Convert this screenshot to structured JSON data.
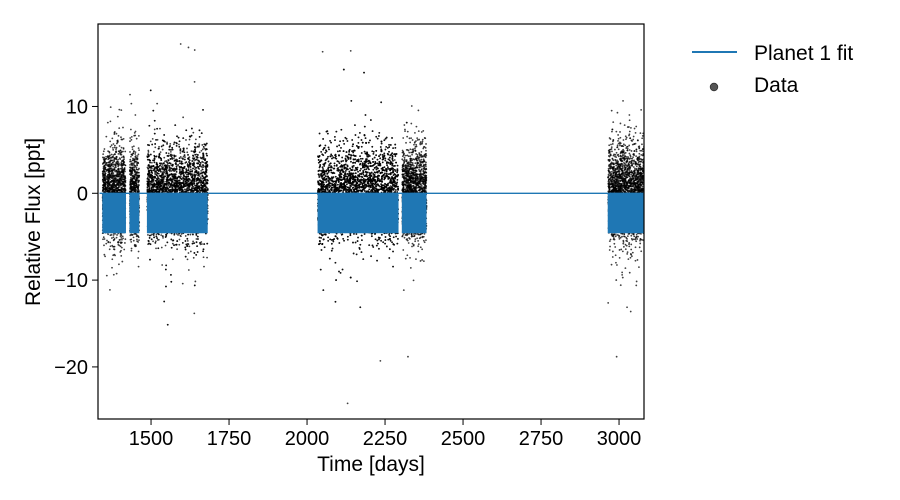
{
  "chart_data": {
    "type": "scatter",
    "xlabel": "Time [days]",
    "ylabel": "Relative Flux [ppt]",
    "xlim": [
      1330,
      3080
    ],
    "ylim": [
      -26,
      19.5
    ],
    "xticks": [
      1500,
      1750,
      2000,
      2250,
      2500,
      2750,
      3000
    ],
    "xtick_labels": [
      "1500",
      "1750",
      "2000",
      "2250",
      "2500",
      "2750",
      "3000"
    ],
    "yticks": [
      10,
      0,
      -10,
      -20
    ],
    "ytick_labels": [
      "10",
      "0",
      "−10",
      "−20"
    ],
    "grid": false,
    "legend_placement": "outside-right-top",
    "colors": {
      "fit": "#1f77b4",
      "data": "#000000"
    },
    "series": [
      {
        "name": "Planet 1 fit",
        "kind": "line",
        "baseline": 0,
        "transit_depth": -4.6,
        "x": [
          1335,
          3080
        ]
      },
      {
        "name": "Data",
        "kind": "scatter",
        "noise_ppt": 4.6,
        "segments": [
          [
            1345,
            1418
          ],
          [
            1432,
            1462
          ],
          [
            1488,
            1682
          ],
          [
            2035,
            2292
          ],
          [
            2305,
            2383
          ],
          [
            2965,
            3080
          ]
        ],
        "outliers": [
          [
            2130,
            -24.2
          ],
          [
            2235,
            -19.3
          ],
          [
            1595,
            17.2
          ],
          [
            1620,
            16.8
          ],
          [
            1640,
            16.5
          ],
          [
            2050,
            16.3
          ],
          [
            2140,
            16.4
          ]
        ]
      }
    ]
  }
}
